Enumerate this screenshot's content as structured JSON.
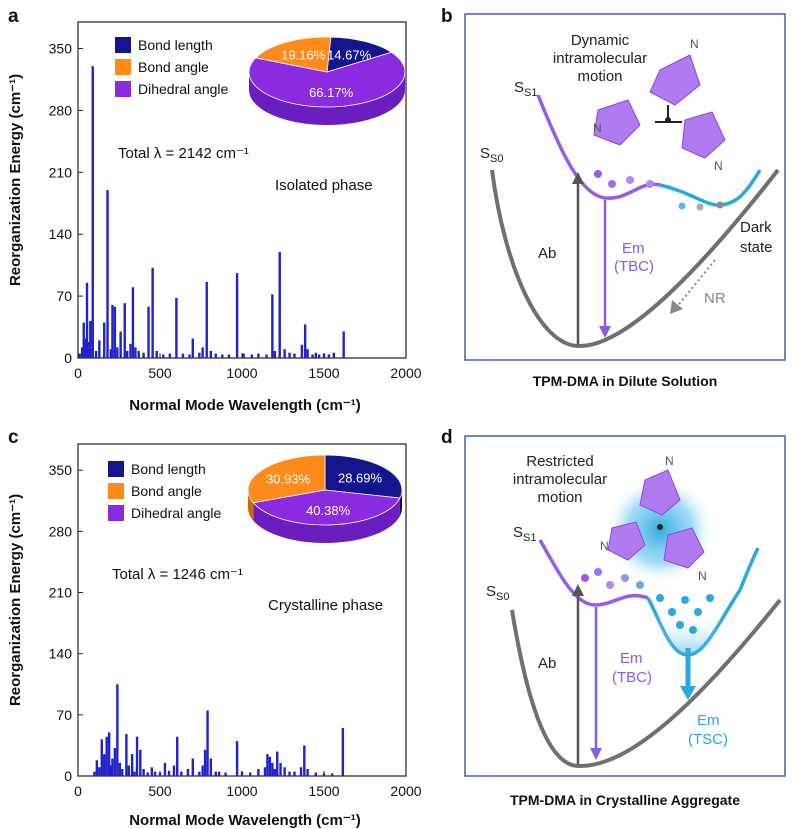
{
  "colors": {
    "bar": "#1f23c8",
    "bond_length": "#14148c",
    "bond_angle": "#ff8a1c",
    "dihedral_angle": "#8a2be2",
    "s1_curve": "#9a5ae8",
    "s1_curve_right": "#2aa8e0",
    "s0_curve": "#707070",
    "em_violet": "#8a5ae8",
    "em_cyan": "#2aa8e0",
    "frame": "#3a64a8",
    "nr_gray": "#888888"
  },
  "panels": {
    "a": {
      "letter": "a",
      "annotation_total": "Total λ = 2142 cm⁻¹",
      "annotation_phase": "Isolated phase"
    },
    "b": {
      "letter": "b",
      "s1": "S1",
      "s0": "S0",
      "motion_label": [
        "Dynamic",
        "intramolecular",
        "motion"
      ],
      "ab": "Ab",
      "em": "Em",
      "em_type": "(TBC)",
      "dark": [
        "Dark",
        "state"
      ],
      "nr": "NR",
      "caption": "TPM-DMA in Dilute Solution"
    },
    "c": {
      "letter": "c",
      "annotation_total": "Total λ = 1246 cm⁻¹",
      "annotation_phase": "Crystalline phase"
    },
    "d": {
      "letter": "d",
      "s1": "S1",
      "s0": "S0",
      "motion_label": [
        "Restricted",
        "intramolecular",
        "motion"
      ],
      "ab": "Ab",
      "em1": "Em",
      "em1_type": "(TBC)",
      "em2": "Em",
      "em2_type": "(TSC)",
      "caption": "TPM-DMA in Crystalline Aggregate"
    }
  },
  "chart_data": [
    {
      "panel": "a",
      "type": "bar",
      "xlabel": "Normal Mode Wavelength (cm⁻¹)",
      "ylabel": "Reorganization Energy (cm⁻¹)",
      "xlim": [
        0,
        2000
      ],
      "ylim": [
        0,
        380
      ],
      "xticks": [
        0,
        500,
        1000,
        1500,
        2000
      ],
      "yticks": [
        0,
        70,
        140,
        210,
        280,
        350
      ],
      "bars": [
        {
          "x": 10,
          "y": 5
        },
        {
          "x": 25,
          "y": 12
        },
        {
          "x": 35,
          "y": 40
        },
        {
          "x": 45,
          "y": 22
        },
        {
          "x": 55,
          "y": 85
        },
        {
          "x": 65,
          "y": 18
        },
        {
          "x": 75,
          "y": 42
        },
        {
          "x": 90,
          "y": 330
        },
        {
          "x": 110,
          "y": 8
        },
        {
          "x": 130,
          "y": 20
        },
        {
          "x": 160,
          "y": 40
        },
        {
          "x": 180,
          "y": 190
        },
        {
          "x": 200,
          "y": 10
        },
        {
          "x": 210,
          "y": 60
        },
        {
          "x": 225,
          "y": 58
        },
        {
          "x": 240,
          "y": 12
        },
        {
          "x": 260,
          "y": 30
        },
        {
          "x": 285,
          "y": 62
        },
        {
          "x": 300,
          "y": 8
        },
        {
          "x": 320,
          "y": 16
        },
        {
          "x": 335,
          "y": 80
        },
        {
          "x": 350,
          "y": 12
        },
        {
          "x": 370,
          "y": 8
        },
        {
          "x": 400,
          "y": 6
        },
        {
          "x": 430,
          "y": 58
        },
        {
          "x": 455,
          "y": 102
        },
        {
          "x": 480,
          "y": 8
        },
        {
          "x": 520,
          "y": 4
        },
        {
          "x": 560,
          "y": 5
        },
        {
          "x": 600,
          "y": 68
        },
        {
          "x": 640,
          "y": 5
        },
        {
          "x": 680,
          "y": 4
        },
        {
          "x": 700,
          "y": 22
        },
        {
          "x": 740,
          "y": 6
        },
        {
          "x": 760,
          "y": 12
        },
        {
          "x": 785,
          "y": 86
        },
        {
          "x": 810,
          "y": 8
        },
        {
          "x": 840,
          "y": 5
        },
        {
          "x": 880,
          "y": 4
        },
        {
          "x": 920,
          "y": 4
        },
        {
          "x": 970,
          "y": 96
        },
        {
          "x": 1010,
          "y": 5
        },
        {
          "x": 1060,
          "y": 4
        },
        {
          "x": 1100,
          "y": 5
        },
        {
          "x": 1150,
          "y": 4
        },
        {
          "x": 1185,
          "y": 72
        },
        {
          "x": 1200,
          "y": 8
        },
        {
          "x": 1230,
          "y": 120
        },
        {
          "x": 1260,
          "y": 10
        },
        {
          "x": 1290,
          "y": 6
        },
        {
          "x": 1320,
          "y": 5
        },
        {
          "x": 1365,
          "y": 15
        },
        {
          "x": 1385,
          "y": 38
        },
        {
          "x": 1400,
          "y": 10
        },
        {
          "x": 1430,
          "y": 4
        },
        {
          "x": 1450,
          "y": 6
        },
        {
          "x": 1470,
          "y": 4
        },
        {
          "x": 1500,
          "y": 5
        },
        {
          "x": 1530,
          "y": 4
        },
        {
          "x": 1560,
          "y": 6
        },
        {
          "x": 1620,
          "y": 30
        }
      ],
      "legend": [
        "Bond length",
        "Bond angle",
        "Dihedral angle"
      ],
      "pie": {
        "type": "pie",
        "labels": [
          "Bond length",
          "Bond angle",
          "Dihedral angle"
        ],
        "values": [
          14.67,
          19.16,
          66.17
        ],
        "value_labels": [
          "14.67%",
          "19.16%",
          "66.17%"
        ]
      }
    },
    {
      "panel": "c",
      "type": "bar",
      "xlabel": "Normal Mode Wavelength (cm⁻¹)",
      "ylabel": "Reorganization Energy (cm⁻¹)",
      "xlim": [
        0,
        2000
      ],
      "ylim": [
        0,
        380
      ],
      "xticks": [
        0,
        500,
        1000,
        1500,
        2000
      ],
      "yticks": [
        0,
        70,
        140,
        210,
        280,
        350
      ],
      "bars": [
        {
          "x": 100,
          "y": 5
        },
        {
          "x": 115,
          "y": 18
        },
        {
          "x": 130,
          "y": 10
        },
        {
          "x": 145,
          "y": 42
        },
        {
          "x": 160,
          "y": 25
        },
        {
          "x": 175,
          "y": 45
        },
        {
          "x": 190,
          "y": 50
        },
        {
          "x": 200,
          "y": 12
        },
        {
          "x": 210,
          "y": 20
        },
        {
          "x": 225,
          "y": 32
        },
        {
          "x": 240,
          "y": 105
        },
        {
          "x": 255,
          "y": 15
        },
        {
          "x": 270,
          "y": 8
        },
        {
          "x": 295,
          "y": 48
        },
        {
          "x": 310,
          "y": 12
        },
        {
          "x": 330,
          "y": 25
        },
        {
          "x": 345,
          "y": 5
        },
        {
          "x": 360,
          "y": 45
        },
        {
          "x": 380,
          "y": 30
        },
        {
          "x": 400,
          "y": 8
        },
        {
          "x": 425,
          "y": 4
        },
        {
          "x": 450,
          "y": 10
        },
        {
          "x": 470,
          "y": 5
        },
        {
          "x": 500,
          "y": 4
        },
        {
          "x": 530,
          "y": 15
        },
        {
          "x": 555,
          "y": 6
        },
        {
          "x": 585,
          "y": 12
        },
        {
          "x": 605,
          "y": 45
        },
        {
          "x": 630,
          "y": 5
        },
        {
          "x": 670,
          "y": 8
        },
        {
          "x": 700,
          "y": 20
        },
        {
          "x": 740,
          "y": 5
        },
        {
          "x": 760,
          "y": 12
        },
        {
          "x": 775,
          "y": 30
        },
        {
          "x": 790,
          "y": 75
        },
        {
          "x": 810,
          "y": 20
        },
        {
          "x": 840,
          "y": 5
        },
        {
          "x": 860,
          "y": 5
        },
        {
          "x": 900,
          "y": 4
        },
        {
          "x": 970,
          "y": 40
        },
        {
          "x": 1000,
          "y": 5
        },
        {
          "x": 1050,
          "y": 4
        },
        {
          "x": 1100,
          "y": 8
        },
        {
          "x": 1140,
          "y": 10
        },
        {
          "x": 1155,
          "y": 25
        },
        {
          "x": 1170,
          "y": 22
        },
        {
          "x": 1185,
          "y": 15
        },
        {
          "x": 1200,
          "y": 8
        },
        {
          "x": 1215,
          "y": 28
        },
        {
          "x": 1235,
          "y": 15
        },
        {
          "x": 1260,
          "y": 10
        },
        {
          "x": 1290,
          "y": 5
        },
        {
          "x": 1320,
          "y": 5
        },
        {
          "x": 1360,
          "y": 10
        },
        {
          "x": 1380,
          "y": 35
        },
        {
          "x": 1400,
          "y": 8
        },
        {
          "x": 1450,
          "y": 4
        },
        {
          "x": 1500,
          "y": 3
        },
        {
          "x": 1550,
          "y": 3
        },
        {
          "x": 1615,
          "y": 55
        }
      ],
      "legend": [
        "Bond length",
        "Bond angle",
        "Dihedral angle"
      ],
      "pie": {
        "type": "pie",
        "labels": [
          "Bond length",
          "Bond angle",
          "Dihedral angle"
        ],
        "values": [
          28.69,
          30.93,
          40.38
        ],
        "value_labels": [
          "28.69%",
          "30.93%",
          "40.38%"
        ]
      }
    }
  ]
}
